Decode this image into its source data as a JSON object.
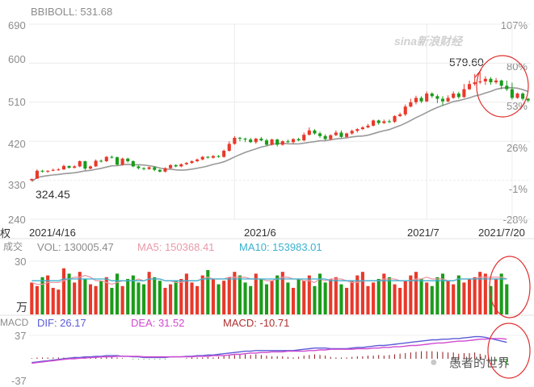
{
  "header": {
    "indicator_label": "BBIBOLL: 531.68"
  },
  "watermark": {
    "brand": "sina新浪财经",
    "account": "愚者的世界"
  },
  "annotations": {
    "high_label": "579.60",
    "low_label": "324.45"
  },
  "volume_panel": {
    "left_marks": [
      "权",
      "成交",
      "万"
    ],
    "vol_label": "VOL: 130005.47",
    "ma5_label": "MA5: 150368.41",
    "ma10_label": "MA10: 153983.01",
    "y_tick": "30"
  },
  "macd_panel": {
    "title": "MACD",
    "dif_label": "DIF: 26.17",
    "dea_label": "DEA: 31.52",
    "macd_label": "MACD: -10.71",
    "y_ticks": [
      "37",
      "-37"
    ]
  },
  "colors": {
    "up": "#e8392a",
    "down": "#1a9c1a",
    "ma_line": "#999999",
    "ma5": "#e89aa8",
    "ma10": "#3bb0d0",
    "dif": "#5b5bd6",
    "dea": "#d04ad0",
    "macd_hist": "#8b1a1a",
    "circle": "#e03030"
  },
  "chart_data": [
    {
      "type": "candlestick",
      "title": "",
      "ylim": [
        240,
        690
      ],
      "y_ticks": [
        "690",
        "600",
        "510",
        "420",
        "330",
        "240"
      ],
      "y2_ticks": [
        "107%",
        "80%",
        "53%",
        "26%",
        "-1%",
        "-28%"
      ],
      "x_labels": [
        "2021/4/16",
        "2021/6",
        "2021/7",
        "2021/7/20"
      ],
      "x_label_index": [
        0,
        38,
        74,
        90
      ],
      "high": 579.6,
      "low": 324.45,
      "candles": [
        [
          330,
          333,
          334,
          329
        ],
        [
          334,
          352,
          355,
          333
        ],
        [
          352,
          350,
          354,
          348
        ],
        [
          350,
          352,
          353,
          347
        ],
        [
          352,
          354,
          357,
          351
        ],
        [
          354,
          355,
          358,
          352
        ],
        [
          355,
          363,
          366,
          354
        ],
        [
          363,
          359,
          364,
          357
        ],
        [
          359,
          362,
          365,
          357
        ],
        [
          362,
          374,
          376,
          360
        ],
        [
          374,
          357,
          375,
          353
        ],
        [
          357,
          362,
          364,
          355
        ],
        [
          362,
          375,
          378,
          361
        ],
        [
          375,
          374,
          378,
          371
        ],
        [
          374,
          384,
          386,
          372
        ],
        [
          384,
          383,
          387,
          380
        ],
        [
          383,
          366,
          385,
          364
        ],
        [
          366,
          380,
          382,
          364
        ],
        [
          380,
          374,
          382,
          371
        ],
        [
          374,
          362,
          376,
          360
        ],
        [
          362,
          358,
          364,
          355
        ],
        [
          358,
          356,
          360,
          353
        ],
        [
          356,
          360,
          362,
          354
        ],
        [
          360,
          354,
          362,
          351
        ],
        [
          354,
          350,
          356,
          348
        ],
        [
          350,
          358,
          360,
          348
        ],
        [
          358,
          365,
          367,
          356
        ],
        [
          365,
          362,
          367,
          360
        ],
        [
          362,
          367,
          369,
          360
        ],
        [
          367,
          370,
          372,
          365
        ],
        [
          370,
          374,
          376,
          368
        ],
        [
          374,
          378,
          380,
          372
        ],
        [
          378,
          384,
          386,
          376
        ],
        [
          384,
          382,
          386,
          380
        ],
        [
          382,
          386,
          388,
          380
        ],
        [
          386,
          384,
          388,
          382
        ],
        [
          384,
          398,
          401,
          382
        ],
        [
          398,
          414,
          420,
          396
        ],
        [
          414,
          428,
          432,
          412
        ],
        [
          428,
          426,
          430,
          420
        ],
        [
          426,
          424,
          428,
          418
        ],
        [
          424,
          418,
          428,
          416
        ],
        [
          418,
          426,
          428,
          414
        ],
        [
          426,
          422,
          430,
          420
        ],
        [
          422,
          412,
          426,
          410
        ],
        [
          412,
          424,
          426,
          410
        ],
        [
          424,
          412,
          426,
          408
        ],
        [
          412,
          420,
          422,
          410
        ],
        [
          420,
          418,
          424,
          416
        ],
        [
          418,
          425,
          427,
          414
        ],
        [
          425,
          422,
          428,
          420
        ],
        [
          422,
          435,
          440,
          420
        ],
        [
          435,
          445,
          452,
          433
        ],
        [
          445,
          438,
          448,
          435
        ],
        [
          438,
          432,
          442,
          428
        ],
        [
          432,
          425,
          436,
          422
        ],
        [
          425,
          434,
          436,
          422
        ],
        [
          434,
          440,
          445,
          432
        ],
        [
          440,
          430,
          445,
          428
        ],
        [
          430,
          438,
          440,
          428
        ],
        [
          438,
          444,
          447,
          435
        ],
        [
          444,
          448,
          450,
          440
        ],
        [
          448,
          452,
          455,
          446
        ],
        [
          452,
          456,
          460,
          450
        ],
        [
          456,
          468,
          470,
          454
        ],
        [
          468,
          462,
          470,
          458
        ],
        [
          462,
          466,
          470,
          460
        ],
        [
          466,
          465,
          470,
          462
        ],
        [
          465,
          478,
          480,
          462
        ],
        [
          478,
          482,
          486,
          476
        ],
        [
          482,
          500,
          505,
          478
        ],
        [
          500,
          510,
          518,
          498
        ],
        [
          510,
          520,
          525,
          505
        ],
        [
          520,
          512,
          524,
          508
        ],
        [
          512,
          530,
          535,
          510
        ],
        [
          530,
          524,
          533,
          520
        ],
        [
          524,
          518,
          528,
          508
        ],
        [
          518,
          512,
          524,
          502
        ],
        [
          512,
          520,
          526,
          510
        ],
        [
          520,
          530,
          535,
          518
        ],
        [
          530,
          522,
          534,
          518
        ],
        [
          522,
          540,
          552,
          520
        ],
        [
          540,
          552,
          560,
          538
        ],
        [
          552,
          556,
          575,
          548
        ],
        [
          556,
          558,
          580,
          552
        ],
        [
          558,
          564,
          570,
          550
        ],
        [
          564,
          556,
          568,
          550
        ],
        [
          556,
          560,
          566,
          552
        ],
        [
          560,
          548,
          562,
          540
        ],
        [
          548,
          540,
          560,
          536
        ],
        [
          540,
          520,
          555,
          516
        ],
        [
          520,
          530,
          532,
          518
        ],
        [
          530,
          518,
          533,
          514
        ],
        [
          518,
          514,
          520,
          510
        ]
      ]
    },
    {
      "type": "bar",
      "title": "",
      "ylabel": "万",
      "ylim": [
        0,
        30
      ],
      "series": [
        {
          "name": "VOL",
          "values": [
            18,
            16,
            21,
            22,
            15,
            14,
            26,
            23,
            18,
            24,
            20,
            17,
            16,
            19,
            21,
            15,
            23,
            16,
            20,
            22,
            18,
            17,
            24,
            21,
            19,
            15,
            17,
            19,
            20,
            23,
            18,
            16,
            22,
            25,
            20,
            17,
            19,
            21,
            24,
            22,
            18,
            16,
            23,
            20,
            17,
            19,
            22,
            24,
            18,
            15,
            20,
            19,
            22,
            16,
            23,
            18,
            20,
            21,
            17,
            15,
            19,
            22,
            24,
            16,
            18,
            20,
            23,
            21,
            17,
            15,
            19,
            22,
            24,
            20,
            18,
            16,
            21,
            23,
            19,
            17,
            22,
            18,
            20,
            21,
            24,
            23,
            16,
            20,
            23,
            17
          ]
        },
        {
          "name": "MA5",
          "values": [
            18,
            17,
            17,
            18,
            18,
            18,
            19,
            20,
            21,
            21,
            22,
            21,
            19,
            19,
            18,
            17,
            18,
            19,
            19,
            19,
            20,
            19,
            20,
            20,
            20,
            19,
            19,
            18,
            18,
            19,
            19,
            19,
            20,
            21,
            20,
            20,
            20,
            21,
            21,
            21,
            21,
            20,
            20,
            20,
            19,
            19,
            20,
            21,
            21,
            20,
            20,
            19,
            19,
            18,
            20,
            19,
            20,
            20,
            20,
            19,
            18,
            18,
            19,
            19,
            19,
            19,
            20,
            20,
            20,
            19,
            19,
            19,
            20,
            20,
            21,
            20,
            20,
            20,
            19,
            19,
            20,
            20,
            20,
            20,
            21,
            21,
            21,
            21,
            21,
            20
          ]
        },
        {
          "name": "MA10",
          "values": [
            19,
            19,
            19,
            19,
            19,
            19,
            20,
            20,
            20,
            20,
            20,
            20,
            20,
            20,
            20,
            19,
            19,
            19,
            19,
            19,
            19,
            19,
            20,
            20,
            20,
            19,
            19,
            19,
            19,
            19,
            19,
            19,
            20,
            20,
            20,
            20,
            20,
            20,
            20,
            20,
            20,
            20,
            20,
            20,
            20,
            20,
            20,
            20,
            20,
            20,
            20,
            20,
            20,
            20,
            20,
            20,
            19,
            19,
            19,
            19,
            19,
            19,
            19,
            19,
            19,
            19,
            19,
            19,
            19,
            19,
            19,
            19,
            19,
            19,
            19,
            19,
            19,
            19,
            19,
            19,
            20,
            20,
            20,
            20,
            20,
            20,
            20,
            20,
            20,
            20
          ]
        }
      ]
    },
    {
      "type": "line",
      "title": "",
      "ylim": [
        -37,
        37
      ],
      "series": [
        {
          "name": "DIF",
          "values": [
            -6,
            -5,
            -4,
            -3,
            -2,
            -1,
            0,
            1,
            2,
            2,
            3,
            3,
            4,
            4,
            5,
            5,
            5,
            4,
            4,
            3,
            3,
            2,
            2,
            2,
            2,
            2,
            3,
            3,
            3,
            4,
            4,
            5,
            5,
            6,
            6,
            7,
            8,
            9,
            10,
            11,
            12,
            12,
            13,
            13,
            13,
            13,
            13,
            13,
            13,
            13,
            14,
            15,
            16,
            17,
            17,
            17,
            16,
            16,
            16,
            16,
            17,
            18,
            18,
            19,
            20,
            21,
            21,
            22,
            23,
            24,
            25,
            26,
            27,
            28,
            29,
            30,
            30,
            31,
            31,
            32,
            32,
            33,
            34,
            35,
            35,
            34,
            32,
            30,
            28,
            26
          ]
        },
        {
          "name": "DEA",
          "values": [
            -7,
            -6,
            -5,
            -4,
            -3,
            -2,
            -1,
            0,
            0,
            1,
            1,
            2,
            2,
            3,
            3,
            3,
            4,
            4,
            4,
            4,
            4,
            3,
            3,
            3,
            3,
            3,
            3,
            3,
            3,
            3,
            3,
            4,
            4,
            4,
            5,
            5,
            5,
            6,
            7,
            7,
            8,
            9,
            9,
            10,
            10,
            11,
            11,
            11,
            12,
            12,
            12,
            12,
            13,
            13,
            14,
            14,
            15,
            15,
            15,
            15,
            15,
            16,
            16,
            16,
            17,
            17,
            18,
            18,
            19,
            19,
            20,
            21,
            21,
            22,
            23,
            24,
            25,
            25,
            26,
            27,
            28,
            28,
            29,
            30,
            31,
            31,
            32,
            32,
            32,
            31
          ]
        },
        {
          "name": "MACD",
          "values": [
            1,
            2,
            2,
            2,
            2,
            2,
            2,
            2,
            3,
            2,
            3,
            2,
            3,
            2,
            3,
            3,
            2,
            1,
            0,
            -1,
            -1,
            -1,
            -1,
            -1,
            -1,
            -1,
            0,
            0,
            0,
            1,
            2,
            2,
            2,
            3,
            2,
            3,
            5,
            6,
            6,
            7,
            7,
            6,
            7,
            6,
            5,
            4,
            4,
            4,
            3,
            2,
            3,
            5,
            6,
            7,
            6,
            5,
            3,
            2,
            2,
            2,
            3,
            4,
            4,
            5,
            5,
            6,
            5,
            6,
            7,
            8,
            9,
            10,
            11,
            12,
            12,
            12,
            11,
            11,
            10,
            10,
            8,
            9,
            9,
            10,
            8,
            6,
            0,
            -4,
            -8,
            -10
          ]
        }
      ]
    }
  ]
}
